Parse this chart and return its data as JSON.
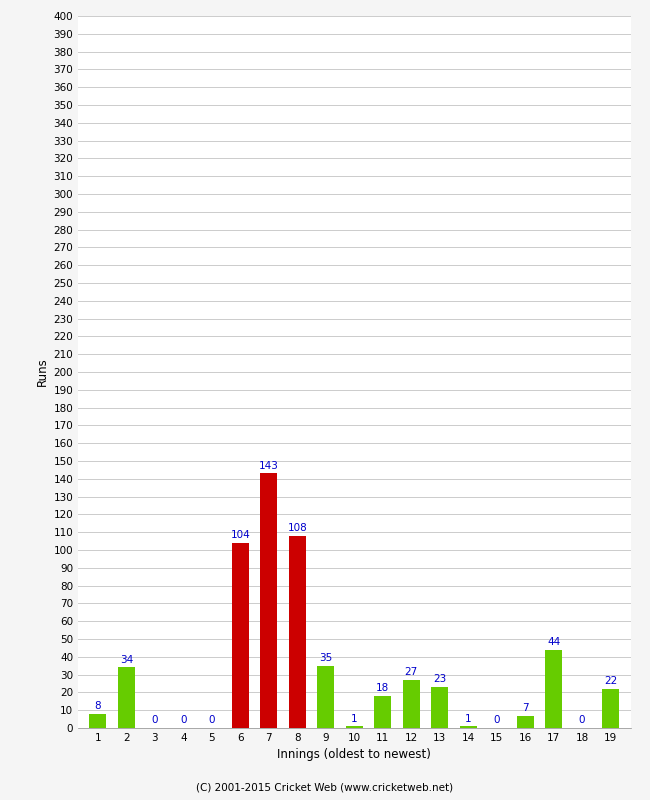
{
  "innings": [
    1,
    2,
    3,
    4,
    5,
    6,
    7,
    8,
    9,
    10,
    11,
    12,
    13,
    14,
    15,
    16,
    17,
    18,
    19
  ],
  "runs": [
    8,
    34,
    0,
    0,
    0,
    104,
    143,
    108,
    35,
    1,
    18,
    27,
    23,
    1,
    0,
    7,
    44,
    0,
    22
  ],
  "colors": [
    "#66cc00",
    "#66cc00",
    "#66cc00",
    "#66cc00",
    "#66cc00",
    "#cc0000",
    "#cc0000",
    "#cc0000",
    "#66cc00",
    "#66cc00",
    "#66cc00",
    "#66cc00",
    "#66cc00",
    "#66cc00",
    "#66cc00",
    "#66cc00",
    "#66cc00",
    "#66cc00",
    "#66cc00"
  ],
  "xlabel": "Innings (oldest to newest)",
  "ylabel": "Runs",
  "yticks": [
    0,
    10,
    20,
    30,
    40,
    50,
    60,
    70,
    80,
    90,
    100,
    110,
    120,
    130,
    140,
    150,
    160,
    170,
    180,
    190,
    200,
    210,
    220,
    230,
    240,
    250,
    260,
    270,
    280,
    290,
    300,
    310,
    320,
    330,
    340,
    350,
    360,
    370,
    380,
    390,
    400
  ],
  "ylim": [
    0,
    400
  ],
  "footer": "(C) 2001-2015 Cricket Web (www.cricketweb.net)",
  "bg_color": "#f5f5f5",
  "plot_bg_color": "#ffffff",
  "grid_color": "#cccccc",
  "label_color": "#0000cc",
  "tick_fontsize": 7.5,
  "label_fontsize": 8.5,
  "bar_width": 0.6
}
